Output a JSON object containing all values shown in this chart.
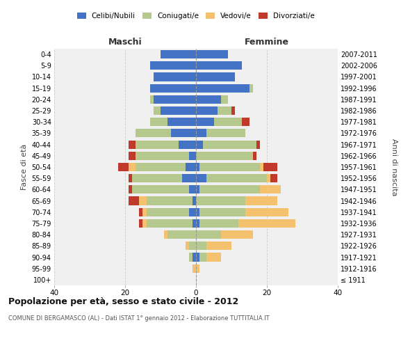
{
  "age_groups": [
    "100+",
    "95-99",
    "90-94",
    "85-89",
    "80-84",
    "75-79",
    "70-74",
    "65-69",
    "60-64",
    "55-59",
    "50-54",
    "45-49",
    "40-44",
    "35-39",
    "30-34",
    "25-29",
    "20-24",
    "15-19",
    "10-14",
    "5-9",
    "0-4"
  ],
  "birth_years": [
    "≤ 1911",
    "1912-1916",
    "1917-1921",
    "1922-1926",
    "1927-1931",
    "1932-1936",
    "1937-1941",
    "1942-1946",
    "1947-1951",
    "1952-1956",
    "1957-1961",
    "1962-1966",
    "1967-1971",
    "1972-1976",
    "1977-1981",
    "1982-1986",
    "1987-1991",
    "1992-1996",
    "1997-2001",
    "2002-2006",
    "2007-2011"
  ],
  "colors": {
    "celibi": "#4472C4",
    "coniugati": "#b5c98e",
    "vedovi": "#f4c16e",
    "divorziati": "#c0392b"
  },
  "maschi": {
    "celibi": [
      0,
      0,
      1,
      0,
      0,
      1,
      2,
      1,
      2,
      4,
      3,
      2,
      5,
      7,
      8,
      10,
      12,
      13,
      12,
      13,
      10
    ],
    "coniugati": [
      0,
      0,
      1,
      2,
      8,
      13,
      12,
      13,
      16,
      14,
      14,
      15,
      12,
      10,
      5,
      2,
      1,
      0,
      0,
      0,
      0
    ],
    "vedovi": [
      0,
      1,
      0,
      1,
      1,
      1,
      1,
      2,
      0,
      0,
      2,
      0,
      0,
      0,
      0,
      0,
      0,
      0,
      0,
      0,
      0
    ],
    "divorziati": [
      0,
      0,
      0,
      0,
      0,
      1,
      1,
      3,
      1,
      1,
      3,
      2,
      2,
      0,
      0,
      0,
      0,
      0,
      0,
      0,
      0
    ]
  },
  "femmine": {
    "celibi": [
      0,
      0,
      1,
      0,
      0,
      1,
      1,
      0,
      1,
      3,
      1,
      0,
      2,
      3,
      5,
      6,
      7,
      15,
      11,
      13,
      9
    ],
    "coniugati": [
      0,
      0,
      2,
      3,
      7,
      11,
      13,
      14,
      17,
      17,
      17,
      16,
      15,
      11,
      8,
      4,
      2,
      1,
      0,
      0,
      0
    ],
    "vedovi": [
      0,
      1,
      4,
      7,
      9,
      16,
      12,
      9,
      6,
      1,
      1,
      0,
      0,
      0,
      0,
      0,
      0,
      0,
      0,
      0,
      0
    ],
    "divorziati": [
      0,
      0,
      0,
      0,
      0,
      0,
      0,
      0,
      0,
      2,
      4,
      1,
      1,
      0,
      2,
      1,
      0,
      0,
      0,
      0,
      0
    ]
  },
  "xlim": 40,
  "title": "Popolazione per età, sesso e stato civile - 2012",
  "subtitle": "COMUNE DI BERGAMASCO (AL) - Dati ISTAT 1° gennaio 2012 - Elaborazione TUTTITALIA.IT",
  "ylabel_left": "Fasce di età",
  "ylabel_right": "Anni di nascita",
  "xlabel_maschi": "Maschi",
  "xlabel_femmine": "Femmine",
  "legend_labels": [
    "Celibi/Nubili",
    "Coniugati/e",
    "Vedovi/e",
    "Divorziati/e"
  ],
  "bg_color": "#f0f0f0"
}
